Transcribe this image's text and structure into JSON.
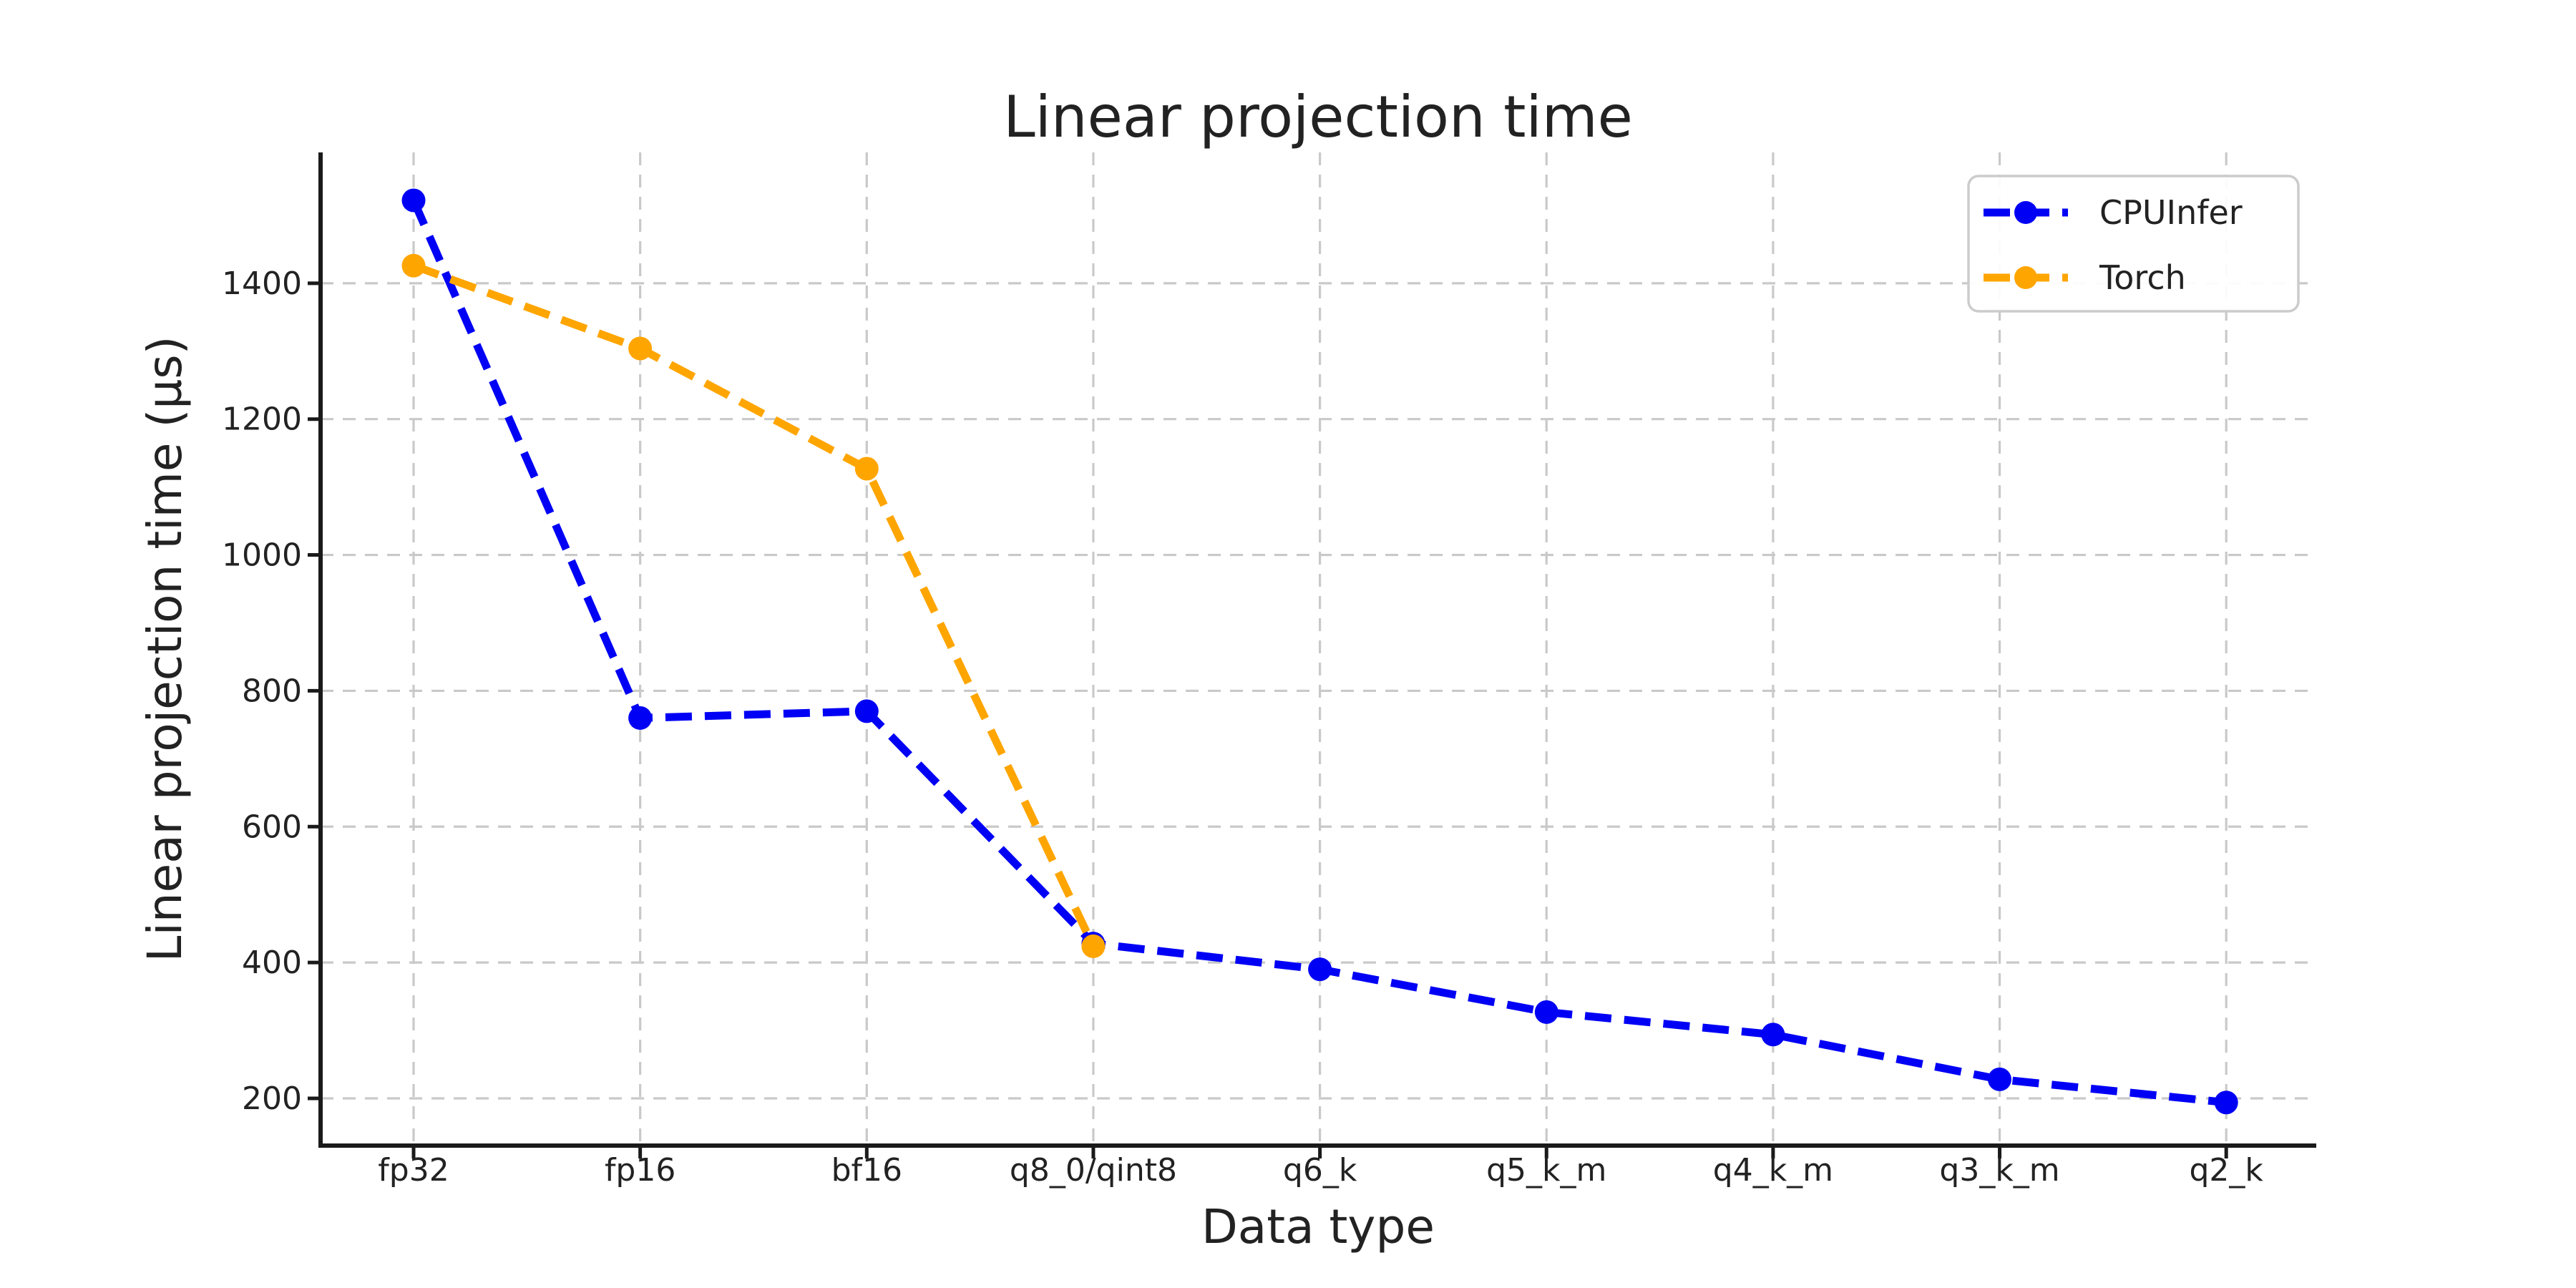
{
  "chart_data": {
    "type": "line",
    "title": "Linear projection time",
    "xlabel": "Data type",
    "ylabel": "Linear projection time (µs)",
    "categories": [
      "fp32",
      "fp16",
      "bf16",
      "q8_0/qint8",
      "q6_k",
      "q5_k_m",
      "q4_k_m",
      "q3_k_m",
      "q2_k"
    ],
    "yticks": [
      200,
      400,
      600,
      800,
      1000,
      1200,
      1400
    ],
    "ylim": [
      127,
      1590
    ],
    "grid": true,
    "grid_style": "dashed",
    "line_style": "dashed",
    "marker": "circle",
    "legend_position": "upper right",
    "colors": {
      "cpuinfer": "#0000f5",
      "torch": "#ffa500",
      "gridline": "#c9c9c9",
      "spine": "#1a1a1a",
      "legend_border": "#cccccc"
    },
    "series": [
      {
        "name": "CPUInfer",
        "color": "#0000f5",
        "values": [
          1522,
          760,
          770,
          428,
          390,
          327,
          294,
          228,
          194
        ]
      },
      {
        "name": "Torch",
        "color": "#ffa500",
        "values": [
          1426,
          1304,
          1127,
          424
        ]
      }
    ]
  }
}
